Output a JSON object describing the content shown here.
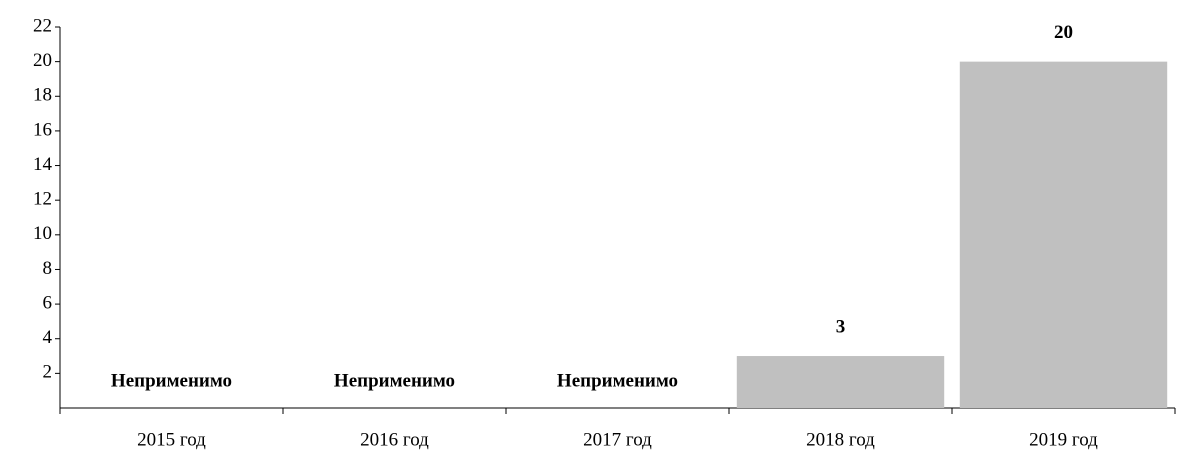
{
  "chart_data": {
    "type": "bar",
    "categories": [
      "2015 год",
      "2016 год",
      "2017 год",
      "2018 год",
      "2019 год"
    ],
    "values": [
      null,
      null,
      null,
      3,
      20
    ],
    "value_labels": [
      "Неприменимо",
      "Неприменимо",
      "Неприменимо",
      "3",
      "20"
    ],
    "color": "#c0c0c0",
    "ylim": [
      0,
      22
    ],
    "yticks": [
      2,
      4,
      6,
      8,
      10,
      12,
      14,
      16,
      18,
      20,
      22
    ],
    "grid": false
  }
}
